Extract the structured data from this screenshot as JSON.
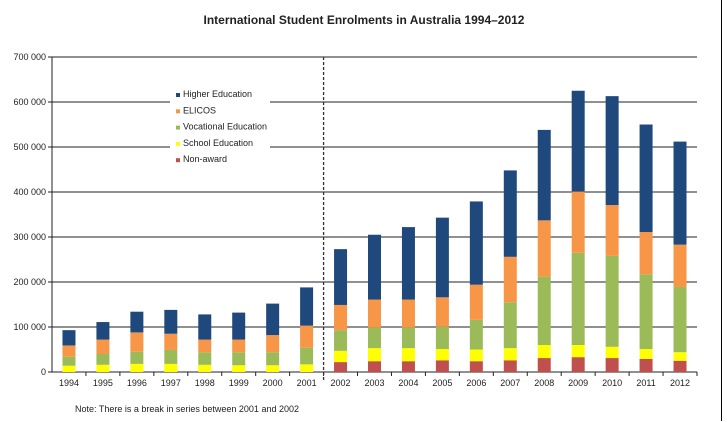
{
  "chart_data": {
    "type": "bar",
    "stacked": true,
    "title": "International Student Enrolments  in Australia 1994–2012",
    "xlabel": "",
    "ylabel": "",
    "ylim": [
      0,
      700000
    ],
    "yticks": [
      "0",
      "100 000",
      "200 000",
      "300 000",
      "400 000",
      "500 000",
      "600 000",
      "700 000"
    ],
    "grid": true,
    "legend_position": "top-left",
    "categories": [
      "1994",
      "1995",
      "1996",
      "1997",
      "1998",
      "1999",
      "2000",
      "2001",
      "2002",
      "2003",
      "2004",
      "2005",
      "2006",
      "2007",
      "2008",
      "2009",
      "2010",
      "2011",
      "2012"
    ],
    "series": [
      {
        "name": "Non-award",
        "color": "#c0504d",
        "values": [
          0,
          0,
          0,
          0,
          0,
          0,
          0,
          0,
          22000,
          24000,
          24000,
          26000,
          24000,
          26000,
          31000,
          33000,
          31000,
          29000,
          25000
        ]
      },
      {
        "name": "School Education",
        "color": "#ffff00",
        "values": [
          14000,
          16000,
          18000,
          18000,
          16000,
          15000,
          15000,
          17000,
          25000,
          29000,
          29000,
          25000,
          26000,
          27000,
          29000,
          27000,
          25000,
          22000,
          19000
        ]
      },
      {
        "name": "Vocational Education",
        "color": "#9bbb59",
        "values": [
          20000,
          24000,
          27000,
          31000,
          28000,
          29000,
          29000,
          37000,
          46000,
          46000,
          46000,
          50000,
          66000,
          102000,
          152000,
          205000,
          202000,
          166000,
          145000
        ]
      },
      {
        "name": "ELICOS",
        "color": "#f79646",
        "values": [
          25000,
          32000,
          43000,
          36000,
          28000,
          28000,
          38000,
          49000,
          56000,
          62000,
          62000,
          65000,
          78000,
          101000,
          125000,
          136000,
          113000,
          94000,
          94000
        ]
      },
      {
        "name": "Higher Education",
        "color": "#1f497d",
        "values": [
          34000,
          39000,
          46000,
          53000,
          56000,
          60000,
          70000,
          85000,
          124000,
          144000,
          161000,
          177000,
          185000,
          192000,
          201000,
          224000,
          242000,
          239000,
          229000
        ]
      }
    ],
    "annotations": {
      "series_break_between": [
        "2001",
        "2002"
      ],
      "note": "Note: There is a break in series between 2001 and 2002"
    }
  }
}
